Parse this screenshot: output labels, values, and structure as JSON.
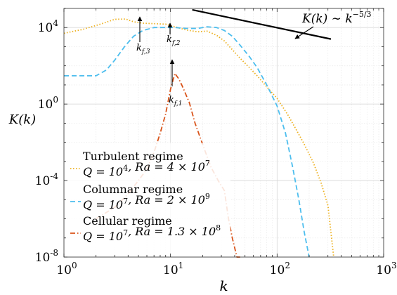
{
  "chart_data": {
    "type": "line",
    "title": "",
    "xlabel": "k",
    "ylabel": "K(k)",
    "xscale": "log",
    "yscale": "log",
    "xlim": [
      1,
      1000
    ],
    "ylim": [
      1e-08,
      100000.0
    ],
    "grid": true,
    "legend_position": "lower-left",
    "x_tick_labels": [
      {
        "value": 1,
        "base": "10",
        "exp": "0"
      },
      {
        "value": 10,
        "base": "10",
        "exp": "1"
      },
      {
        "value": 100,
        "base": "10",
        "exp": "2"
      },
      {
        "value": 1000,
        "base": "10",
        "exp": "3"
      }
    ],
    "y_tick_labels": [
      {
        "value": 10000,
        "base": "10",
        "exp": "4"
      },
      {
        "value": 1,
        "base": "10",
        "exp": "0"
      },
      {
        "value": 0.0001,
        "base": "10",
        "exp": "-4"
      },
      {
        "value": 1e-08,
        "base": "10",
        "exp": "-8"
      }
    ],
    "series": [
      {
        "name": "Turbulent regime",
        "param_label": "Q = 10^4, Ra = 4 × 10^7",
        "color": "#EDB120",
        "dash": "dotted",
        "x": [
          1,
          1.5,
          2.2,
          3,
          3.8,
          4.5,
          5.5,
          7,
          9,
          11,
          14,
          18,
          22,
          27,
          32,
          38,
          45,
          55,
          65,
          80,
          100,
          125,
          150,
          180,
          220,
          260,
          300,
          340
        ],
        "y": [
          5000,
          8000,
          15000,
          27000,
          28000,
          20000,
          17000,
          16000,
          15000,
          11000,
          7500,
          6000,
          6500,
          4000,
          2000,
          700,
          250,
          80,
          30,
          8,
          2,
          0.3,
          0.05,
          0.008,
          0.0008,
          7e-05,
          5e-06,
          1e-08
        ]
      },
      {
        "name": "Columnar regime",
        "param_label": "Q = 10^7, Ra = 2 × 10^9",
        "color": "#4DBEEE",
        "dash": "dashed",
        "x": [
          1,
          1.5,
          2,
          2.5,
          3,
          3.7,
          4.5,
          5.5,
          7,
          9,
          11,
          14,
          18,
          22,
          27,
          32,
          38,
          45,
          55,
          65,
          80,
          100,
          120,
          140,
          160,
          180,
          200
        ],
        "y": [
          30,
          30,
          30,
          60,
          200,
          1000,
          3500,
          7000,
          10000,
          10000,
          10000,
          9000,
          9000,
          11000,
          10000,
          7000,
          3500,
          1200,
          300,
          80,
          10,
          0.8,
          0.03,
          0.0005,
          1e-05,
          2e-07,
          1e-08
        ]
      },
      {
        "name": "Cellular regime",
        "param_label": "Q = 10^7, Ra = 1.3 × 10^8",
        "color": "#D95319",
        "dash": "dashdot",
        "x": [
          2,
          3,
          4,
          5,
          6,
          7,
          8,
          9,
          10,
          11,
          12,
          13,
          15,
          17,
          20,
          24,
          28,
          32,
          35,
          38,
          42,
          45
        ],
        "y": [
          1e-06,
          4e-06,
          2e-05,
          0.0001,
          0.0004,
          0.003,
          0.03,
          0.3,
          6,
          40,
          20,
          8,
          1.2,
          0.1,
          0.008,
          0.0005,
          0.0001,
          3e-05,
          1e-06,
          1e-07,
          1e-08,
          1e-08
        ]
      }
    ],
    "annotations": [
      {
        "text": "K(k) ∼ k^{-5/3}",
        "text_prefix": "K(k) ∼ k",
        "text_exp": "−5/3",
        "line_x": [
          16,
          320
        ],
        "line_y": [
          85000,
          2500
        ],
        "arrow_from_x": 23,
        "arrow_from_y": 0.6,
        "arrow_to_x": 0.43,
        "arrow_to_y": 0.72
      },
      {
        "text_main": "k",
        "text_sub": "f,3",
        "x": 5,
        "y": 20000
      },
      {
        "text_main": "k",
        "text_sub": "f,2",
        "x": 10,
        "y": 10000
      },
      {
        "text_main": "k",
        "text_sub": "f,1",
        "x": 11,
        "y": 40
      }
    ]
  }
}
